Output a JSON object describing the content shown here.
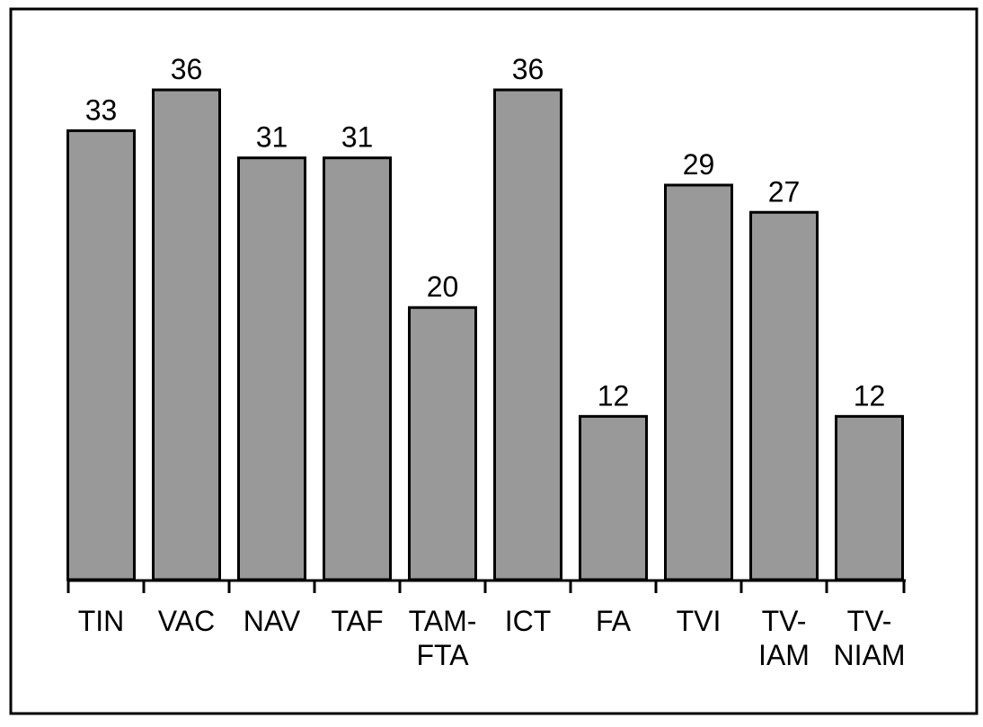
{
  "chart_data": {
    "type": "bar",
    "categories": [
      "TIN",
      "VAC",
      "NAV",
      "TAF",
      "TAM-FTA",
      "ICT",
      "FA",
      "TVI",
      "TV-IAM",
      "TV-NIAM"
    ],
    "values": [
      33,
      36,
      31,
      31,
      20,
      36,
      12,
      29,
      27,
      12
    ],
    "color": "#999999"
  }
}
